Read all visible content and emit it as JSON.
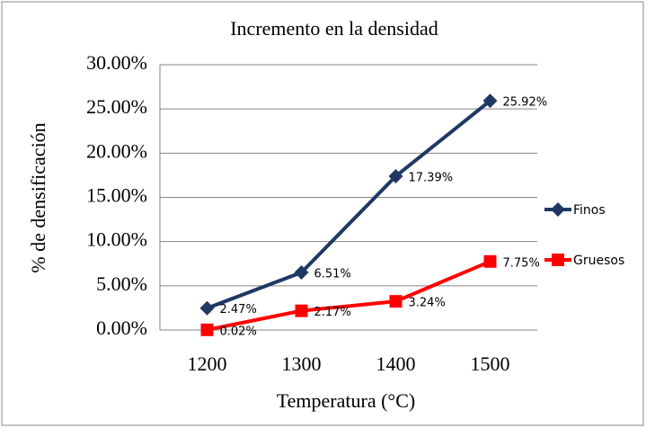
{
  "chart_data": {
    "type": "line",
    "title": "Incremento en la densidad",
    "xlabel": "Temperatura (°C)",
    "ylabel": "% de densificación",
    "categories": [
      "1200",
      "1300",
      "1400",
      "1500"
    ],
    "series": [
      {
        "name": "Finos",
        "color": "#1f3864",
        "marker": "diamond",
        "values": [
          2.47,
          6.51,
          17.39,
          25.92
        ],
        "value_labels": [
          "2.47%",
          "6.51%",
          "17.39%",
          "25.92%"
        ]
      },
      {
        "name": "Gruesos",
        "color": "#ff0000",
        "marker": "square",
        "values": [
          0.02,
          2.17,
          3.24,
          7.75
        ],
        "value_labels": [
          "0.02%",
          "2.17%",
          "3.24%",
          "7.75%"
        ]
      }
    ],
    "ylim": [
      0,
      30
    ],
    "yticks": [
      {
        "value": 0,
        "label": "0.00%"
      },
      {
        "value": 5,
        "label": "5.00%"
      },
      {
        "value": 10,
        "label": "10.00%"
      },
      {
        "value": 15,
        "label": "15.00%"
      },
      {
        "value": 20,
        "label": "20.00%"
      },
      {
        "value": 25,
        "label": "25.00%"
      },
      {
        "value": 30,
        "label": "30.00%"
      }
    ],
    "grid": true,
    "legend": "right"
  }
}
